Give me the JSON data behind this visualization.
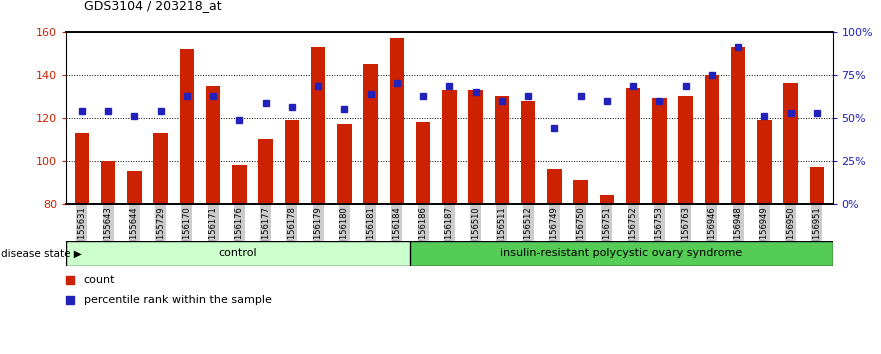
{
  "title": "GDS3104 / 203218_at",
  "categories": [
    "GSM155631",
    "GSM155643",
    "GSM155644",
    "GSM155729",
    "GSM156170",
    "GSM156171",
    "GSM156176",
    "GSM156177",
    "GSM156178",
    "GSM156179",
    "GSM156180",
    "GSM156181",
    "GSM156184",
    "GSM156186",
    "GSM156187",
    "GSM156510",
    "GSM156511",
    "GSM156512",
    "GSM156749",
    "GSM156750",
    "GSM156751",
    "GSM156752",
    "GSM156753",
    "GSM156763",
    "GSM156946",
    "GSM156948",
    "GSM156949",
    "GSM156950",
    "GSM156951"
  ],
  "bar_values": [
    113,
    100,
    95,
    113,
    152,
    135,
    98,
    110,
    119,
    153,
    117,
    145,
    157,
    118,
    133,
    133,
    130,
    128,
    96,
    91,
    84,
    134,
    129,
    130,
    140,
    153,
    119,
    136,
    97
  ],
  "blue_values": [
    123,
    123,
    121,
    123,
    130,
    130,
    119,
    127,
    125,
    135,
    124,
    131,
    136,
    130,
    135,
    132,
    128,
    130,
    115,
    130,
    128,
    135,
    128,
    135,
    140,
    153,
    121,
    122,
    122
  ],
  "control_count": 13,
  "disease_count": 16,
  "control_label": "control",
  "disease_label": "insulin-resistant polycystic ovary syndrome",
  "ymin": 80,
  "ymax": 160,
  "yticks_left": [
    80,
    100,
    120,
    140,
    160
  ],
  "right_ytick_pcts": [
    0,
    25,
    50,
    75,
    100
  ],
  "right_yticklabels": [
    "0%",
    "25%",
    "50%",
    "75%",
    "100%"
  ],
  "bar_color": "#cc2200",
  "blue_color": "#2222bb",
  "control_bg": "#ccffcc",
  "disease_bg": "#55cc55",
  "tick_bg": "#cccccc",
  "legend_count_label": "count",
  "legend_pct_label": "percentile rank within the sample"
}
